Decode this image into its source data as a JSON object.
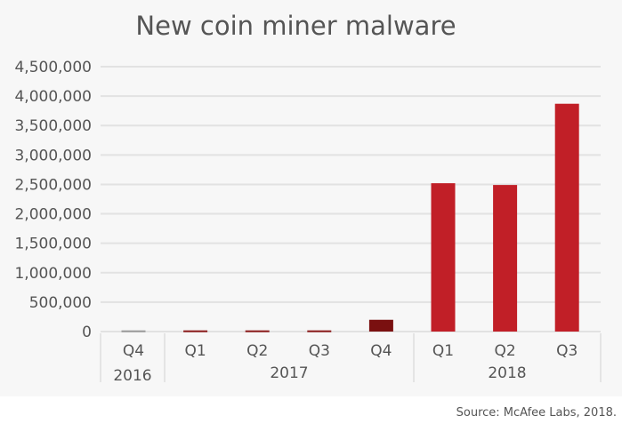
{
  "chart_data": {
    "type": "bar",
    "title": "New coin miner malware",
    "categories": [
      "Q4 2016",
      "Q1 2017",
      "Q2 2017",
      "Q3 2017",
      "Q4 2017",
      "Q1 2018",
      "Q2 2018",
      "Q3 2018"
    ],
    "quarter_labels": [
      "Q4",
      "Q1",
      "Q2",
      "Q3",
      "Q4",
      "Q1",
      "Q2",
      "Q3"
    ],
    "year_groups": [
      {
        "label": "2016",
        "count": 1
      },
      {
        "label": "2017",
        "count": 4
      },
      {
        "label": "2018",
        "count": 3
      }
    ],
    "values": [
      20000,
      20000,
      20000,
      20000,
      200000,
      2520000,
      2490000,
      3870000
    ],
    "bar_colors": [
      "#999999",
      "#8b1a1a",
      "#8b1a1a",
      "#8b1a1a",
      "#7a1010",
      "#c11f27",
      "#c11f27",
      "#c11f27"
    ],
    "ylim": [
      0,
      4500000
    ],
    "yticks": [
      "0",
      "500,000",
      "1,000,000",
      "1,500,000",
      "2,000,000",
      "2,500,000",
      "3,000,000",
      "3,500,000",
      "4,000,000",
      "4,500,000"
    ],
    "grid": true,
    "xlabel": "",
    "ylabel": ""
  },
  "source": "Source: McAfee Labs, 2018."
}
